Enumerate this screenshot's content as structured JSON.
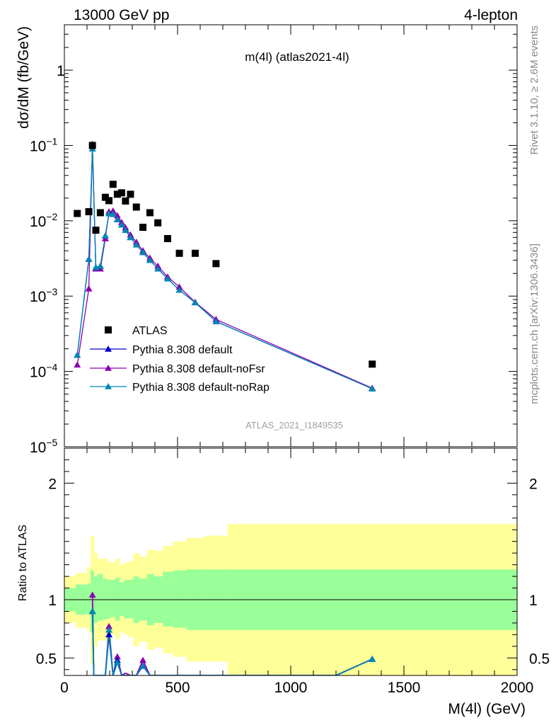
{
  "header": {
    "left": "13000 GeV pp",
    "right": "4-lepton"
  },
  "side_text": {
    "top": "Rivet 3.1.10, ≥ 2.6M events",
    "bottom": "mcplots.cern.ch [arXiv:1306.3436]"
  },
  "plot_title": "m(4l) (atlas2021-4l)",
  "analysis_label": "ATLAS_2021_I1849535",
  "colors": {
    "data": "#000000",
    "default": "#0000cc",
    "noFsr": "#8a00b0",
    "noRap": "#0088b0",
    "band_inner": "#99ff99",
    "band_outer": "#ffff99"
  },
  "chart_data": {
    "type": "scatter",
    "ylabel_top": "dσ/dM (fb/GeV)",
    "ylabel_bottom": "Ratio to ATLAS",
    "xlabel": "M(4l) (GeV)",
    "x_scale": "linear",
    "xlim": [
      0,
      2000
    ],
    "x_ticks": [
      0,
      500,
      1000,
      1500,
      2000
    ],
    "x_tick_labels": [
      "0",
      "500",
      "1000",
      "1500",
      "2000"
    ],
    "top_y_scale": "log",
    "top_ylim": [
      1e-05,
      4
    ],
    "top_y_ticks": [
      1e-05,
      0.0001,
      0.001,
      0.01,
      0.1,
      1
    ],
    "top_y_tick_labels": [
      {
        "base": "10",
        "exp": "−5"
      },
      {
        "base": "10",
        "exp": "−4"
      },
      {
        "base": "10",
        "exp": "−3"
      },
      {
        "base": "10",
        "exp": "−2"
      },
      {
        "base": "10",
        "exp": "−1"
      },
      {
        "base": "1",
        "exp": ""
      }
    ],
    "ratio_ylim": [
      0.35,
      2.3
    ],
    "ratio_y_ticks": [
      0.5,
      1,
      2
    ],
    "ratio_y_tick_labels": [
      "0.5",
      "1",
      "2"
    ],
    "legend": {
      "placement": "lower-left",
      "entries": [
        "ATLAS",
        "Pythia 8.308 default",
        "Pythia 8.308 default-noFsr",
        "Pythia 8.308 default-noRap"
      ]
    },
    "data": {
      "name": "ATLAS",
      "x": [
        57,
        108,
        124,
        139,
        159,
        181,
        197,
        215,
        234,
        253,
        270,
        292,
        318,
        347,
        378,
        413,
        456,
        508,
        578,
        670,
        1360
      ],
      "y": [
        0.0125,
        0.0132,
        0.1,
        0.0075,
        0.0128,
        0.0205,
        0.0185,
        0.0305,
        0.0225,
        0.0235,
        0.0183,
        0.0225,
        0.0152,
        0.0082,
        0.0128,
        0.0094,
        0.0058,
        0.0037,
        0.0037,
        0.0027,
        0.000125
      ]
    },
    "series": [
      {
        "name": "Pythia 8.308 default",
        "x": [
          57,
          108,
          124,
          139,
          159,
          181,
          197,
          215,
          234,
          253,
          270,
          292,
          318,
          347,
          378,
          413,
          456,
          508,
          578,
          670,
          1360
        ],
        "y": [
          0.000165,
          0.0031,
          0.09,
          0.0024,
          0.0025,
          0.0063,
          0.0125,
          0.0122,
          0.0104,
          0.0088,
          0.0075,
          0.006,
          0.0048,
          0.0038,
          0.003,
          0.0023,
          0.0017,
          0.0012,
          0.00082,
          0.00046,
          5.9e-05
        ]
      },
      {
        "name": "Pythia 8.308 default-noFsr",
        "x": [
          57,
          108,
          124,
          139,
          159,
          181,
          197,
          215,
          234,
          253,
          270,
          292,
          318,
          347,
          378,
          413,
          456,
          508,
          578,
          670,
          1360
        ],
        "y": [
          0.000122,
          0.00125,
          0.104,
          0.0023,
          0.0023,
          0.0058,
          0.0132,
          0.0135,
          0.0117,
          0.0095,
          0.0081,
          0.0065,
          0.0052,
          0.004,
          0.0032,
          0.0025,
          0.0018,
          0.00132,
          0.00083,
          0.00049,
          6e-05
        ]
      },
      {
        "name": "Pythia 8.308 default-noRap",
        "x": [
          57,
          108,
          124,
          139,
          159,
          181,
          197,
          215,
          234,
          253,
          270,
          292,
          318,
          347,
          378,
          413,
          456,
          508,
          578,
          670,
          1360
        ],
        "y": [
          0.000165,
          0.0031,
          0.09,
          0.0024,
          0.0025,
          0.0063,
          0.0125,
          0.0122,
          0.0104,
          0.0088,
          0.0075,
          0.006,
          0.0048,
          0.0038,
          0.003,
          0.0023,
          0.0017,
          0.0012,
          0.00082,
          0.00046,
          5.9e-05
        ]
      }
    ],
    "ratio_series": [
      {
        "name": "Pythia 8.308 default",
        "x": [
          124,
          130,
          139,
          159,
          181,
          197,
          215,
          234,
          253,
          270,
          292,
          318,
          347,
          378,
          1200,
          1360
        ],
        "y": [
          0.9,
          0.35,
          0.35,
          0.35,
          0.35,
          0.7,
          0.35,
          0.48,
          0.35,
          0.35,
          0.35,
          0.35,
          0.43,
          0.35,
          0.35,
          0.49
        ]
      },
      {
        "name": "Pythia 8.308 default-noFsr",
        "x": [
          124,
          130,
          139,
          159,
          181,
          197,
          215,
          234,
          253,
          270,
          292,
          318,
          347,
          378,
          1200,
          1360
        ],
        "y": [
          1.04,
          0.35,
          0.35,
          0.35,
          0.35,
          0.77,
          0.35,
          0.51,
          0.35,
          0.37,
          0.35,
          0.35,
          0.48,
          0.35,
          0.35,
          0.49
        ]
      },
      {
        "name": "Pythia 8.308 default-noRap",
        "x": [
          124,
          130,
          139,
          159,
          181,
          197,
          215,
          234,
          253,
          270,
          292,
          318,
          347,
          378,
          1200,
          1360
        ],
        "y": [
          0.9,
          0.35,
          0.35,
          0.35,
          0.35,
          0.74,
          0.35,
          0.46,
          0.35,
          0.35,
          0.35,
          0.35,
          0.43,
          0.35,
          0.35,
          0.49
        ]
      }
    ],
    "ratio_bands": {
      "edges": [
        0,
        50,
        100,
        116,
        131,
        146,
        170,
        190,
        205,
        225,
        244,
        262,
        280,
        305,
        330,
        365,
        395,
        435,
        480,
        540,
        620,
        720,
        2000
      ],
      "inner_low": [
        0.9,
        0.87,
        0.88,
        0.72,
        0.8,
        0.82,
        0.83,
        0.84,
        0.85,
        0.82,
        0.86,
        0.84,
        0.84,
        0.8,
        0.82,
        0.78,
        0.8,
        0.77,
        0.76,
        0.74,
        0.74,
        0.74
      ],
      "inner_high": [
        1.1,
        1.13,
        1.14,
        1.25,
        1.2,
        1.22,
        1.18,
        1.17,
        1.17,
        1.19,
        1.15,
        1.17,
        1.17,
        1.2,
        1.18,
        1.22,
        1.2,
        1.24,
        1.25,
        1.26,
        1.26,
        1.26
      ],
      "outer_low": [
        0.8,
        0.76,
        0.73,
        0.45,
        0.6,
        0.65,
        0.65,
        0.67,
        0.7,
        0.66,
        0.72,
        0.7,
        0.68,
        0.6,
        0.64,
        0.57,
        0.59,
        0.54,
        0.51,
        0.47,
        0.47,
        0.35
      ],
      "outer_high": [
        1.2,
        1.23,
        1.28,
        1.55,
        1.4,
        1.35,
        1.35,
        1.33,
        1.32,
        1.35,
        1.3,
        1.32,
        1.33,
        1.4,
        1.37,
        1.43,
        1.42,
        1.46,
        1.5,
        1.53,
        1.55,
        1.65
      ]
    }
  }
}
